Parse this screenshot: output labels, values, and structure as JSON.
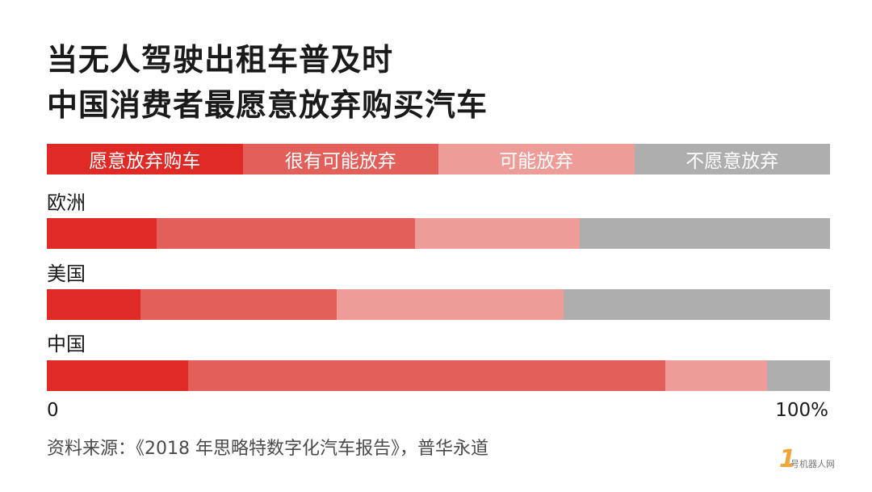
{
  "title": {
    "line1": "当无人驾驶出租车普及时",
    "line2": "中国消费者最愿意放弃购买汽车"
  },
  "colors": [
    "#e02a25",
    "#e3605a",
    "#ee9c98",
    "#aeaeae"
  ],
  "chart_data": {
    "type": "bar",
    "stacked": true,
    "normalized_percent": true,
    "categories": [
      "欧洲",
      "美国",
      "中国"
    ],
    "series": [
      {
        "name": "愿意放弃购车",
        "values": [
          14,
          12,
          18
        ]
      },
      {
        "name": "很有可能放弃",
        "values": [
          33,
          25,
          61
        ]
      },
      {
        "name": "可能放弃",
        "values": [
          21,
          29,
          13
        ]
      },
      {
        "name": "不愿意放弃",
        "values": [
          32,
          34,
          8
        ]
      }
    ],
    "axis": {
      "min_label": "0",
      "max_label": "100%"
    },
    "xlim": [
      0,
      100
    ],
    "legend": "top"
  },
  "source": "资料来源：《2018 年思略特数字化汽车报告》，普华永道",
  "logo": {
    "mark": "1",
    "text": "号机器人网"
  }
}
